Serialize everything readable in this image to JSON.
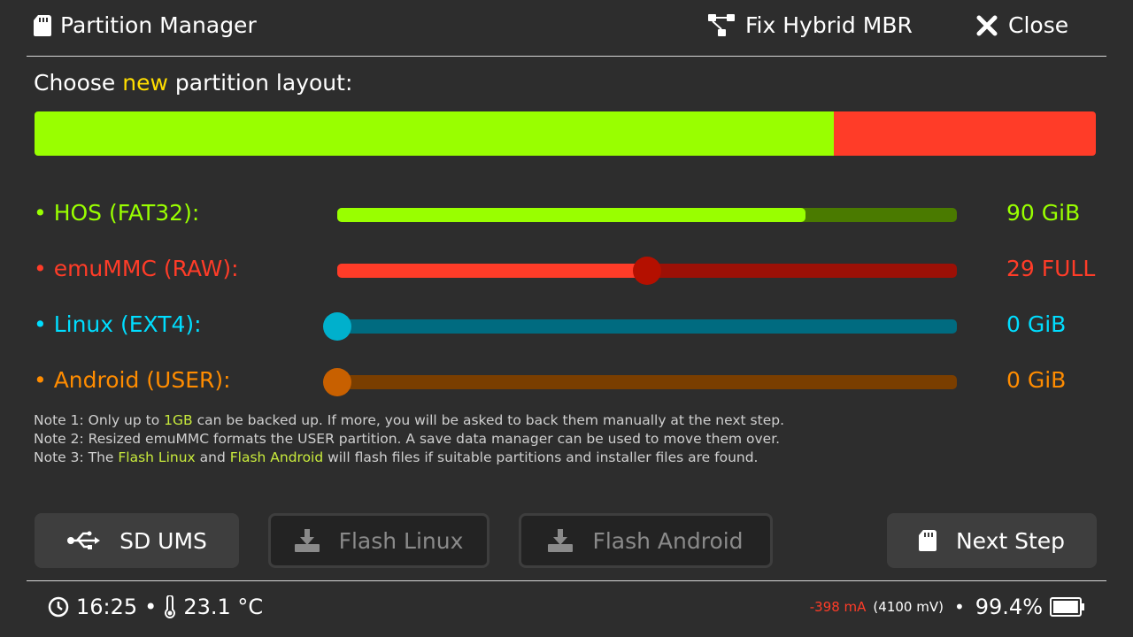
{
  "header": {
    "title": "Partition Manager",
    "fix_hybrid_mbr": "Fix Hybrid MBR",
    "close": "Close"
  },
  "prompt": {
    "before": "Choose ",
    "highlight": "new",
    "after": " partition layout:"
  },
  "layout_bar": {
    "segments": [
      {
        "name": "HOS",
        "fraction": 0.753,
        "color": "#99ff00"
      },
      {
        "name": "emuMMC",
        "fraction": 0.247,
        "color": "#ff3c28"
      }
    ]
  },
  "partitions": [
    {
      "label": "• HOS (FAT32):",
      "value": "90 GiB",
      "slider": 0.756,
      "color": "#99ff00",
      "track": "#4a7a00",
      "knob": null
    },
    {
      "label": "• emuMMC (RAW):",
      "value": "29 FULL",
      "slider": 0.5,
      "color": "#ff3c28",
      "track": "#9c1006",
      "knob": "#b41000"
    },
    {
      "label": "• Linux (EXT4):",
      "value": "0 GiB",
      "slider": 0,
      "color": "#00ddff",
      "track": "#006b80",
      "knob": "#00b0cc"
    },
    {
      "label": "• Android (USER):",
      "value": "0 GiB",
      "slider": 0,
      "color": "#ff8c00",
      "track": "#7a3e00",
      "knob": "#c86000"
    }
  ],
  "notes": {
    "n1a": "Note 1: Only up to ",
    "n1h": "1GB",
    "n1b": " can be backed up. If more, you will be asked to back them manually at the next step.",
    "n2": "Note 2: Resized emuMMC formats the USER partition. A save data manager can be used to move them over.",
    "n3a": "Note 3: The ",
    "n3h1": "Flash Linux",
    "n3b": " and ",
    "n3h2": "Flash Android",
    "n3c": " will flash files if suitable partitions and installer files are found."
  },
  "buttons": {
    "sd_ums": "SD UMS",
    "flash_linux": "Flash Linux",
    "flash_android": "Flash Android",
    "next_step": "Next Step"
  },
  "status": {
    "time": "16:25",
    "temp": "23.1 °C",
    "current": "-398 mA",
    "voltage": "(4100 mV)",
    "battery": "99.4%",
    "battery_level": 0.994,
    "sep": "•"
  }
}
